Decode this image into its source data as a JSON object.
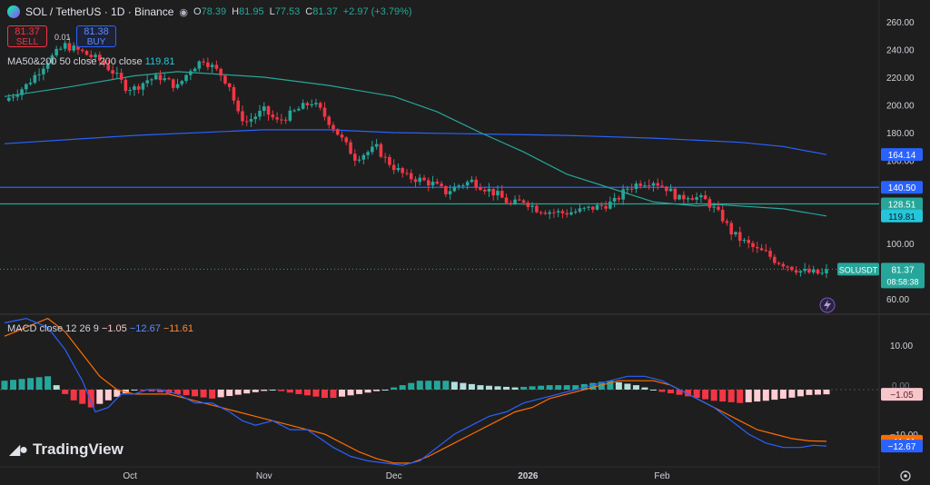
{
  "header": {
    "title": "SOL / TetherUS · 1D · Binance",
    "open_label": "O",
    "open": "78.39",
    "high_label": "H",
    "high": "81.95",
    "low_label": "L",
    "low": "77.53",
    "close_label": "C",
    "close": "81.37",
    "change": "+2.97 (+3.79%)"
  },
  "trade": {
    "sell_price": "81.37",
    "sell_label": "SELL",
    "spread": "0.01",
    "buy_price": "81.38",
    "buy_label": "BUY"
  },
  "ma_legend": {
    "label": "MA50&200 50 close 200 close",
    "value": "119.81"
  },
  "macd_legend": {
    "label": "MACD close 12 26 9",
    "hist": "−1.05",
    "macd": "−12.67",
    "signal": "−11.61"
  },
  "branding": {
    "logo_text": "TradingView"
  },
  "colors": {
    "up": "#26a69a",
    "down": "#f23645",
    "ma50": "#26a69a",
    "ma200": "#2962ff",
    "macd": "#2962ff",
    "signal": "#ff6d00",
    "hist_up": "#26a69a",
    "hist_down": "#f23645",
    "hline_blue": "#2962ff",
    "hline_green": "#26a69a"
  },
  "icons": [
    "solana-logo-icon",
    "eye-icon",
    "lightning-icon",
    "settings-icon"
  ],
  "chart_data": [
    {
      "type": "candlestick",
      "title": "SOL / TetherUS · 1D · Binance",
      "ylim": [
        53,
        270
      ],
      "y_ticks": [
        "260.00",
        "240.00",
        "220.00",
        "200.00",
        "180.00",
        "160.00",
        "140.00",
        "120.00",
        "100.00",
        "80.00",
        "60.00"
      ],
      "y_tick_values": [
        260,
        240,
        220,
        200,
        180,
        160,
        140,
        120,
        100,
        80,
        60
      ],
      "x_labels": [
        "Oct",
        "Nov",
        "Dec",
        "2026",
        "Feb"
      ],
      "x_label_days": [
        29,
        60,
        90,
        121,
        152
      ],
      "x_start_date": "2025-09-01",
      "close_path": [
        [
          0,
          203
        ],
        [
          5,
          214
        ],
        [
          10,
          232
        ],
        [
          14,
          243
        ],
        [
          18,
          238
        ],
        [
          22,
          232
        ],
        [
          25,
          224
        ],
        [
          28,
          213
        ],
        [
          30,
          212
        ],
        [
          33,
          218
        ],
        [
          36,
          220
        ],
        [
          40,
          213
        ],
        [
          43,
          226
        ],
        [
          46,
          233
        ],
        [
          50,
          222
        ],
        [
          52,
          214
        ],
        [
          54,
          193
        ],
        [
          56,
          188
        ],
        [
          60,
          196
        ],
        [
          63,
          188
        ],
        [
          66,
          193
        ],
        [
          68,
          197
        ],
        [
          71,
          202
        ],
        [
          73,
          196
        ],
        [
          76,
          184
        ],
        [
          78,
          175
        ],
        [
          81,
          162
        ],
        [
          84,
          166
        ],
        [
          86,
          169
        ],
        [
          88,
          161
        ],
        [
          90,
          155
        ],
        [
          93,
          148
        ],
        [
          96,
          146
        ],
        [
          99,
          143
        ],
        [
          102,
          137
        ],
        [
          105,
          142
        ],
        [
          108,
          145
        ],
        [
          111,
          140
        ],
        [
          114,
          135
        ],
        [
          117,
          128
        ],
        [
          120,
          131
        ],
        [
          123,
          125
        ],
        [
          126,
          123
        ],
        [
          129,
          122
        ],
        [
          132,
          123
        ],
        [
          135,
          125
        ],
        [
          138,
          127
        ],
        [
          141,
          130
        ],
        [
          144,
          140
        ],
        [
          147,
          144
        ],
        [
          150,
          145
        ],
        [
          153,
          140
        ],
        [
          156,
          132
        ],
        [
          158,
          135
        ],
        [
          160,
          133
        ],
        [
          162,
          131
        ],
        [
          164,
          125
        ],
        [
          166,
          118
        ],
        [
          168,
          108
        ],
        [
          170,
          103
        ],
        [
          172,
          99
        ],
        [
          174,
          95
        ],
        [
          176,
          93
        ],
        [
          178,
          88
        ],
        [
          181,
          84
        ],
        [
          184,
          80
        ],
        [
          186,
          79
        ],
        [
          189,
          78
        ],
        [
          190,
          81.37
        ]
      ],
      "ma50": {
        "name": "MA 50",
        "points": [
          [
            0,
            206
          ],
          [
            15,
            213
          ],
          [
            30,
            221
          ],
          [
            40,
            224
          ],
          [
            50,
            222
          ],
          [
            60,
            220
          ],
          [
            75,
            214
          ],
          [
            90,
            206
          ],
          [
            100,
            195
          ],
          [
            110,
            180
          ],
          [
            120,
            166
          ],
          [
            130,
            150
          ],
          [
            140,
            140
          ],
          [
            150,
            130
          ],
          [
            160,
            127
          ],
          [
            165,
            128
          ],
          [
            170,
            127
          ],
          [
            180,
            125
          ],
          [
            190,
            119.81
          ]
        ]
      },
      "ma200": {
        "name": "MA 200",
        "points": [
          [
            0,
            172
          ],
          [
            30,
            178
          ],
          [
            60,
            182
          ],
          [
            75,
            182
          ],
          [
            90,
            180
          ],
          [
            110,
            179
          ],
          [
            130,
            178
          ],
          [
            150,
            176
          ],
          [
            170,
            173
          ],
          [
            180,
            170
          ],
          [
            190,
            164.14
          ]
        ]
      },
      "horizontal_lines": [
        {
          "value": 140.5,
          "label": "140.50",
          "color": "#2962ff"
        },
        {
          "value": 128.51,
          "label": "128.51",
          "color": "#26a69a"
        }
      ],
      "price_labels": [
        {
          "value": 164.14,
          "text": "164.14",
          "color": "#2962ff"
        },
        {
          "value": 140.5,
          "text": "140.50",
          "color": "#2962ff"
        },
        {
          "value": 128.51,
          "text": "128.51",
          "color": "#26a69a"
        },
        {
          "value": 119.81,
          "text": "119.81",
          "color": "#26c6da"
        }
      ],
      "last_price": {
        "symbol": "SOLUSDT",
        "value": 81.37,
        "text": "81.37",
        "countdown": "08:58:38"
      }
    },
    {
      "type": "macd",
      "title": "MACD close 12 26 9",
      "ylim": [
        -17,
        16
      ],
      "y_ticks": [
        "10.00",
        "−10.00"
      ],
      "y_tick_values": [
        10,
        -10
      ],
      "zero_label": "0.00",
      "macd_path": [
        [
          0,
          15
        ],
        [
          5,
          16
        ],
        [
          10,
          14
        ],
        [
          14,
          9
        ],
        [
          18,
          2
        ],
        [
          21,
          -5
        ],
        [
          24,
          -4
        ],
        [
          27,
          -1
        ],
        [
          30,
          -1
        ],
        [
          33,
          0
        ],
        [
          36,
          0
        ],
        [
          40,
          -1
        ],
        [
          44,
          -3
        ],
        [
          48,
          -3
        ],
        [
          52,
          -5
        ],
        [
          55,
          -7
        ],
        [
          58,
          -8
        ],
        [
          62,
          -7
        ],
        [
          66,
          -9
        ],
        [
          70,
          -9
        ],
        [
          73,
          -11
        ],
        [
          76,
          -13
        ],
        [
          80,
          -15
        ],
        [
          84,
          -16
        ],
        [
          88,
          -16.5
        ],
        [
          92,
          -17
        ],
        [
          96,
          -16
        ],
        [
          100,
          -13
        ],
        [
          104,
          -10
        ],
        [
          108,
          -8
        ],
        [
          112,
          -6
        ],
        [
          116,
          -5
        ],
        [
          120,
          -3
        ],
        [
          124,
          -2
        ],
        [
          128,
          -1
        ],
        [
          132,
          0
        ],
        [
          136,
          1
        ],
        [
          140,
          2
        ],
        [
          144,
          3
        ],
        [
          148,
          3
        ],
        [
          152,
          2
        ],
        [
          156,
          0
        ],
        [
          160,
          -2
        ],
        [
          164,
          -4
        ],
        [
          168,
          -7
        ],
        [
          172,
          -10
        ],
        [
          176,
          -12
        ],
        [
          180,
          -13
        ],
        [
          184,
          -13
        ],
        [
          187,
          -12.5
        ],
        [
          190,
          -12.67
        ]
      ],
      "signal_path": [
        [
          0,
          12
        ],
        [
          5,
          14
        ],
        [
          10,
          16
        ],
        [
          14,
          13
        ],
        [
          18,
          8
        ],
        [
          22,
          3
        ],
        [
          26,
          0
        ],
        [
          30,
          -1
        ],
        [
          34,
          -1
        ],
        [
          38,
          -1
        ],
        [
          42,
          -2
        ],
        [
          46,
          -3
        ],
        [
          50,
          -4
        ],
        [
          54,
          -5
        ],
        [
          58,
          -6
        ],
        [
          62,
          -7
        ],
        [
          66,
          -8
        ],
        [
          70,
          -9
        ],
        [
          74,
          -10
        ],
        [
          78,
          -12
        ],
        [
          82,
          -14
        ],
        [
          86,
          -15.5
        ],
        [
          90,
          -16.5
        ],
        [
          94,
          -16.5
        ],
        [
          98,
          -15
        ],
        [
          102,
          -13
        ],
        [
          106,
          -11
        ],
        [
          110,
          -9
        ],
        [
          114,
          -7
        ],
        [
          118,
          -5
        ],
        [
          122,
          -4
        ],
        [
          126,
          -2
        ],
        [
          130,
          -1
        ],
        [
          134,
          0
        ],
        [
          138,
          1
        ],
        [
          142,
          2
        ],
        [
          146,
          2
        ],
        [
          150,
          2
        ],
        [
          154,
          1
        ],
        [
          158,
          -1
        ],
        [
          162,
          -3
        ],
        [
          166,
          -5
        ],
        [
          170,
          -7
        ],
        [
          174,
          -9
        ],
        [
          178,
          -10
        ],
        [
          182,
          -11
        ],
        [
          186,
          -11.5
        ],
        [
          190,
          -11.61
        ]
      ],
      "histogram_envelope": [
        [
          0,
          2
        ],
        [
          10,
          3
        ],
        [
          15,
          -2
        ],
        [
          20,
          -4
        ],
        [
          25,
          -2
        ],
        [
          30,
          0
        ],
        [
          40,
          -1
        ],
        [
          48,
          -2
        ],
        [
          55,
          -1
        ],
        [
          62,
          0
        ],
        [
          68,
          -1
        ],
        [
          75,
          -2
        ],
        [
          82,
          -1
        ],
        [
          88,
          0
        ],
        [
          92,
          1
        ],
        [
          96,
          2
        ],
        [
          102,
          2
        ],
        [
          110,
          1
        ],
        [
          118,
          0.5
        ],
        [
          126,
          1
        ],
        [
          132,
          1
        ],
        [
          140,
          2
        ],
        [
          146,
          1
        ],
        [
          152,
          -0.5
        ],
        [
          158,
          -1.5
        ],
        [
          164,
          -2.5
        ],
        [
          170,
          -3
        ],
        [
          176,
          -2.5
        ],
        [
          182,
          -1.8
        ],
        [
          186,
          -1.2
        ],
        [
          190,
          -1.05
        ]
      ],
      "price_labels": [
        {
          "value": -1.05,
          "text": "−1.05",
          "color": "#f7c6cb"
        },
        {
          "value": -11.61,
          "text": "−11.61",
          "color": "#ff6d00"
        },
        {
          "value": -12.67,
          "text": "−12.67",
          "color": "#2962ff"
        }
      ]
    }
  ]
}
